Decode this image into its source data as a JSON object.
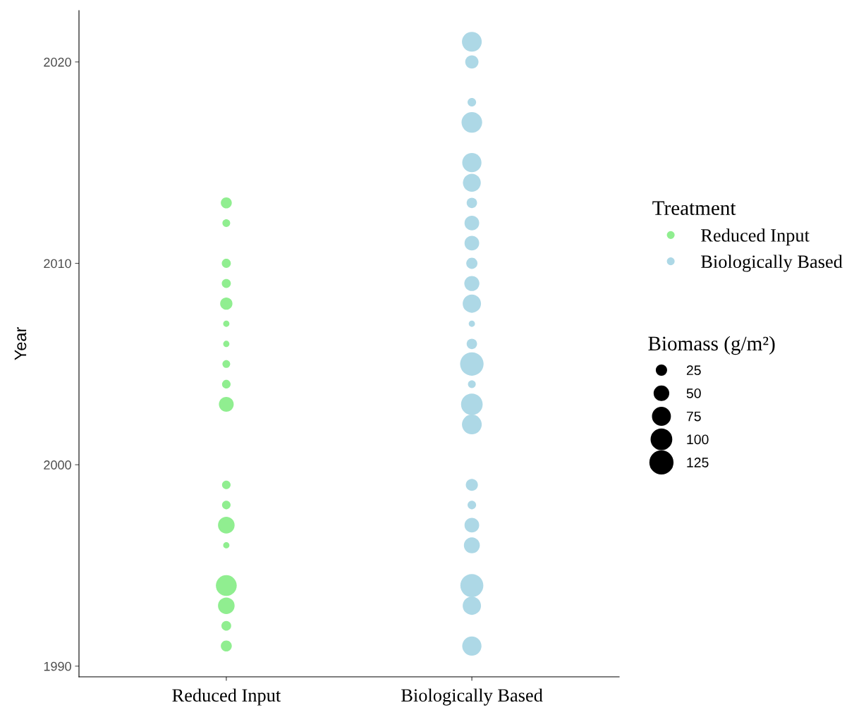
{
  "chart_data": {
    "type": "bubble",
    "ylabel": "Year",
    "categories": [
      "Reduced Input",
      "Biologically Based"
    ],
    "ylim": [
      1989.47,
      2022.55
    ],
    "yticks": [
      1990,
      2000,
      2010,
      2020
    ],
    "grid": false,
    "legend": "right",
    "legend_title": "Treatment",
    "annotations": [
      "Biomass (g/m²)"
    ],
    "size_legend": [
      25,
      50,
      75,
      100,
      125
    ],
    "series": [
      {
        "name": "Reduced Input",
        "color": "#90ee90",
        "x": [
          "Reduced Input",
          "Reduced Input",
          "Reduced Input",
          "Reduced Input",
          "Reduced Input",
          "Reduced Input",
          "Reduced Input",
          "Reduced Input",
          "Reduced Input",
          "Reduced Input",
          "Reduced Input",
          "Reduced Input",
          "Reduced Input",
          "Reduced Input",
          "Reduced Input",
          "Reduced Input",
          "Reduced Input",
          "Reduced Input"
        ],
        "values": [
          2013,
          2012,
          2010,
          2009,
          2008,
          2007,
          2006,
          2005,
          2004,
          2003,
          1999,
          1998,
          1997,
          1996,
          1994,
          1993,
          1992,
          1991
        ],
        "sizes": [
          28,
          14,
          19,
          19,
          35,
          9,
          9,
          14,
          17,
          51,
          17,
          17,
          64,
          9,
          101,
          64,
          22,
          28
        ]
      },
      {
        "name": "Biologically Based",
        "color": "#add8e6",
        "x": [
          "Biologically Based",
          "Biologically Based",
          "Biologically Based",
          "Biologically Based",
          "Biologically Based",
          "Biologically Based",
          "Biologically Based",
          "Biologically Based",
          "Biologically Based",
          "Biologically Based",
          "Biologically Based",
          "Biologically Based",
          "Biologically Based",
          "Biologically Based",
          "Biologically Based",
          "Biologically Based",
          "Biologically Based",
          "Biologically Based",
          "Biologically Based",
          "Biologically Based",
          "Biologically Based",
          "Biologically Based",
          "Biologically Based",
          "Biologically Based",
          "Biologically Based"
        ],
        "values": [
          2021,
          2020,
          2018,
          2017,
          2015,
          2014,
          2013,
          2012,
          2011,
          2010,
          2009,
          2008,
          2007,
          2006,
          2005,
          2004,
          2003,
          2002,
          1999,
          1998,
          1997,
          1996,
          1994,
          1993,
          1991
        ],
        "sizes": [
          91,
          41,
          17,
          99,
          86,
          74,
          25,
          50,
          50,
          29,
          53,
          78,
          9,
          25,
          128,
          14,
          109,
          91,
          34,
          17,
          50,
          59,
          123,
          78,
          86
        ]
      }
    ]
  }
}
